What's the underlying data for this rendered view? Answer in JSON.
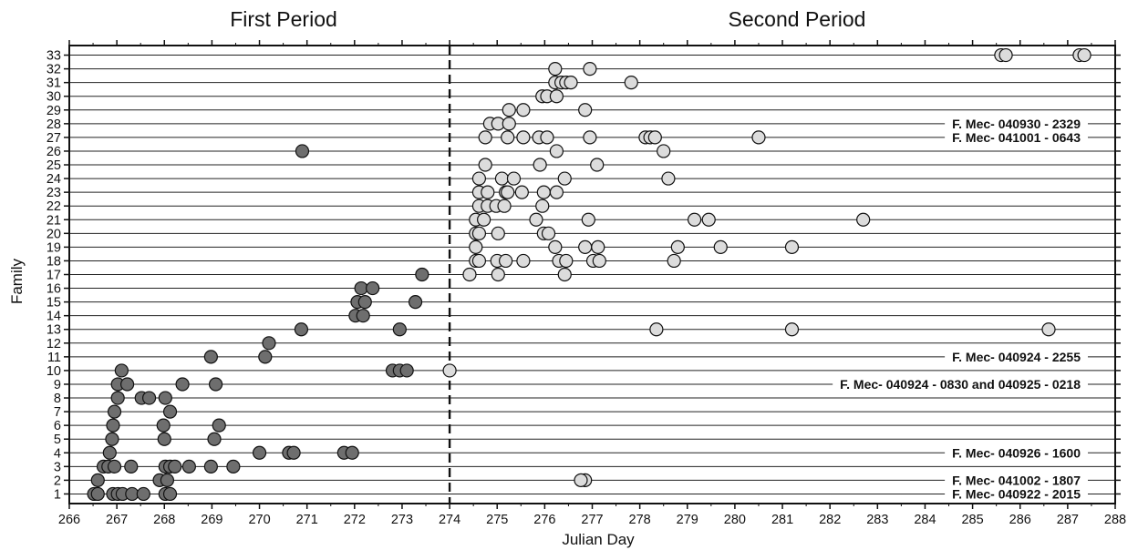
{
  "chart_data": {
    "type": "scatter",
    "title": "",
    "xlabel": "Julian Day",
    "ylabel": "Family",
    "xlim": [
      266,
      288
    ],
    "ylim": [
      0.3,
      33.7
    ],
    "x_ticks": [
      266,
      267,
      268,
      269,
      270,
      271,
      272,
      273,
      274,
      275,
      276,
      277,
      278,
      279,
      280,
      281,
      282,
      283,
      284,
      285,
      286,
      287,
      288
    ],
    "y_ticks": [
      1,
      2,
      3,
      4,
      5,
      6,
      7,
      8,
      9,
      10,
      11,
      12,
      13,
      14,
      15,
      16,
      17,
      18,
      19,
      20,
      21,
      22,
      23,
      24,
      25,
      26,
      27,
      28,
      29,
      30,
      31,
      32,
      33
    ],
    "grid": "horizontal lines at each family",
    "period_divider_x": 274,
    "period_labels": {
      "first": "First Period",
      "second": "Second Period"
    },
    "colors": {
      "first_period": "#6e6e6e",
      "second_period": "#dcdcdc",
      "edge": "#111111"
    },
    "annotations": [
      {
        "text": "F. Mec- 040930 - 2329",
        "family": 28
      },
      {
        "text": "F. Mec- 041001 - 0643",
        "family": 27
      },
      {
        "text": "F. Mec- 040924 - 2255",
        "family": 11
      },
      {
        "text": "F. Mec- 040924 - 0830 and 040925 - 0218",
        "family": 9
      },
      {
        "text": "F. Mec- 040926 - 1600",
        "family": 4
      },
      {
        "text": "F. Mec- 041002 - 1807",
        "family": 2
      },
      {
        "text": "F. Mec- 040922 - 2015",
        "family": 1
      }
    ],
    "series": [
      {
        "period": "first",
        "points": [
          [
            266.52,
            1
          ],
          [
            266.6,
            1
          ],
          [
            266.92,
            1
          ],
          [
            267.02,
            1
          ],
          [
            267.12,
            1
          ],
          [
            267.32,
            1
          ],
          [
            267.56,
            1
          ],
          [
            268.02,
            1
          ],
          [
            268.12,
            1
          ],
          [
            266.6,
            2
          ],
          [
            267.9,
            2
          ],
          [
            268.06,
            2
          ],
          [
            266.72,
            3
          ],
          [
            266.82,
            3
          ],
          [
            266.95,
            3
          ],
          [
            267.3,
            3
          ],
          [
            268.02,
            3
          ],
          [
            268.12,
            3
          ],
          [
            268.22,
            3
          ],
          [
            268.52,
            3
          ],
          [
            268.98,
            3
          ],
          [
            269.45,
            3
          ],
          [
            266.85,
            4
          ],
          [
            270.0,
            4
          ],
          [
            270.62,
            4
          ],
          [
            270.72,
            4
          ],
          [
            271.78,
            4
          ],
          [
            271.95,
            4
          ],
          [
            266.9,
            5
          ],
          [
            268.0,
            5
          ],
          [
            269.05,
            5
          ],
          [
            266.92,
            6
          ],
          [
            267.98,
            6
          ],
          [
            269.15,
            6
          ],
          [
            266.95,
            7
          ],
          [
            268.12,
            7
          ],
          [
            267.02,
            8
          ],
          [
            267.52,
            8
          ],
          [
            267.68,
            8
          ],
          [
            268.02,
            8
          ],
          [
            267.02,
            9
          ],
          [
            267.22,
            9
          ],
          [
            268.38,
            9
          ],
          [
            269.08,
            9
          ],
          [
            267.1,
            10
          ],
          [
            272.8,
            10
          ],
          [
            272.95,
            10
          ],
          [
            273.1,
            10
          ],
          [
            268.98,
            11
          ],
          [
            270.12,
            11
          ],
          [
            270.2,
            12
          ],
          [
            270.88,
            13
          ],
          [
            272.95,
            13
          ],
          [
            272.02,
            14
          ],
          [
            272.18,
            14
          ],
          [
            272.06,
            15
          ],
          [
            272.22,
            15
          ],
          [
            273.28,
            15
          ],
          [
            272.14,
            16
          ],
          [
            272.38,
            16
          ],
          [
            273.42,
            17
          ],
          [
            270.9,
            26
          ]
        ]
      },
      {
        "period": "second",
        "points": [
          [
            276.85,
            2
          ],
          [
            276.76,
            2
          ],
          [
            274.0,
            10
          ],
          [
            278.35,
            13
          ],
          [
            281.2,
            13
          ],
          [
            286.6,
            13
          ],
          [
            274.42,
            17
          ],
          [
            275.02,
            17
          ],
          [
            276.42,
            17
          ],
          [
            274.55,
            18
          ],
          [
            274.62,
            18
          ],
          [
            275.0,
            18
          ],
          [
            275.18,
            18
          ],
          [
            275.55,
            18
          ],
          [
            276.3,
            18
          ],
          [
            276.45,
            18
          ],
          [
            277.02,
            18
          ],
          [
            277.15,
            18
          ],
          [
            278.72,
            18
          ],
          [
            274.55,
            19
          ],
          [
            276.22,
            19
          ],
          [
            276.85,
            19
          ],
          [
            277.12,
            19
          ],
          [
            278.8,
            19
          ],
          [
            279.7,
            19
          ],
          [
            281.2,
            19
          ],
          [
            274.55,
            20
          ],
          [
            274.62,
            20
          ],
          [
            275.02,
            20
          ],
          [
            275.98,
            20
          ],
          [
            276.08,
            20
          ],
          [
            274.55,
            21
          ],
          [
            274.72,
            21
          ],
          [
            275.82,
            21
          ],
          [
            276.92,
            21
          ],
          [
            279.15,
            21
          ],
          [
            279.45,
            21
          ],
          [
            282.7,
            21
          ],
          [
            274.62,
            22
          ],
          [
            274.8,
            22
          ],
          [
            274.98,
            22
          ],
          [
            275.15,
            22
          ],
          [
            275.95,
            22
          ],
          [
            274.62,
            23
          ],
          [
            274.8,
            23
          ],
          [
            275.18,
            23
          ],
          [
            275.22,
            23
          ],
          [
            275.52,
            23
          ],
          [
            275.98,
            23
          ],
          [
            276.25,
            23
          ],
          [
            274.62,
            24
          ],
          [
            275.1,
            24
          ],
          [
            275.35,
            24
          ],
          [
            276.42,
            24
          ],
          [
            278.6,
            24
          ],
          [
            274.75,
            25
          ],
          [
            275.9,
            25
          ],
          [
            277.1,
            25
          ],
          [
            276.25,
            26
          ],
          [
            278.5,
            26
          ],
          [
            274.75,
            27
          ],
          [
            275.22,
            27
          ],
          [
            275.55,
            27
          ],
          [
            275.88,
            27
          ],
          [
            276.05,
            27
          ],
          [
            276.95,
            27
          ],
          [
            278.12,
            27
          ],
          [
            278.22,
            27
          ],
          [
            278.32,
            27
          ],
          [
            280.5,
            27
          ],
          [
            274.85,
            28
          ],
          [
            275.02,
            28
          ],
          [
            275.25,
            28
          ],
          [
            275.25,
            29
          ],
          [
            275.55,
            29
          ],
          [
            276.85,
            29
          ],
          [
            275.95,
            30
          ],
          [
            276.05,
            30
          ],
          [
            276.25,
            30
          ],
          [
            276.22,
            31
          ],
          [
            276.35,
            31
          ],
          [
            276.45,
            31
          ],
          [
            276.55,
            31
          ],
          [
            277.82,
            31
          ],
          [
            276.22,
            32
          ],
          [
            276.95,
            32
          ],
          [
            285.6,
            33
          ],
          [
            285.7,
            33
          ],
          [
            287.25,
            33
          ],
          [
            287.35,
            33
          ]
        ]
      }
    ]
  }
}
